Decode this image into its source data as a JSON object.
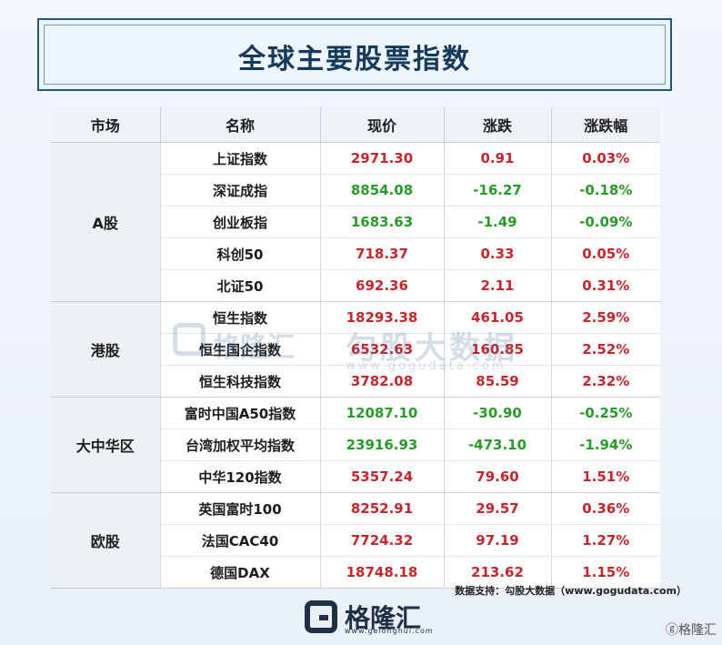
{
  "title": "全球主要股票指数",
  "headers": [
    "市场",
    "名称",
    "现价",
    "涨跌",
    "涨跌幅"
  ],
  "groups": [
    {
      "market": "A股",
      "rows": [
        {
          "name": "上证指数",
          "price": "2971.30",
          "change": "0.91",
          "pct": "0.03%",
          "dir": "up"
        },
        {
          "name": "深证成指",
          "price": "8854.08",
          "change": "-16.27",
          "pct": "-0.18%",
          "dir": "down"
        },
        {
          "name": "创业板指",
          "price": "1683.63",
          "change": "-1.49",
          "pct": "-0.09%",
          "dir": "down"
        },
        {
          "name": "科创50",
          "price": "718.37",
          "change": "0.33",
          "pct": "0.05%",
          "dir": "up"
        },
        {
          "name": "北证50",
          "price": "692.36",
          "change": "2.11",
          "pct": "0.31%",
          "dir": "up"
        }
      ]
    },
    {
      "market": "港股",
      "rows": [
        {
          "name": "恒生指数",
          "price": "18293.38",
          "change": "461.05",
          "pct": "2.59%",
          "dir": "up"
        },
        {
          "name": "恒生国企指数",
          "price": "6532.63",
          "change": "160.85",
          "pct": "2.52%",
          "dir": "up"
        },
        {
          "name": "恒生科技指数",
          "price": "3782.08",
          "change": "85.59",
          "pct": "2.32%",
          "dir": "up"
        }
      ]
    },
    {
      "market": "大中华区",
      "rows": [
        {
          "name": "富时中国A50指数",
          "price": "12087.10",
          "change": "-30.90",
          "pct": "-0.25%",
          "dir": "down"
        },
        {
          "name": "台湾加权平均指数",
          "price": "23916.93",
          "change": "-473.10",
          "pct": "-1.94%",
          "dir": "down"
        },
        {
          "name": "中华120指数",
          "price": "5357.24",
          "change": "79.60",
          "pct": "1.51%",
          "dir": "up"
        }
      ]
    },
    {
      "market": "欧股",
      "rows": [
        {
          "name": "英国富时100",
          "price": "8252.91",
          "change": "29.57",
          "pct": "0.36%",
          "dir": "up"
        },
        {
          "name": "法国CAC40",
          "price": "7724.32",
          "change": "97.19",
          "pct": "1.27%",
          "dir": "up"
        },
        {
          "name": "德国DAX",
          "price": "18748.18",
          "change": "213.62",
          "pct": "1.15%",
          "dir": "up"
        }
      ]
    }
  ],
  "source": "数据支持：勾股大数据（www.gogudata.com）",
  "watermark": {
    "brand": "格隆汇",
    "product": "勾股大数据",
    "url": "www.gogudata.com"
  },
  "logo": {
    "name": "格隆汇",
    "url": "www.gelonghui.com"
  },
  "corner_mark": "ⓖ格隆汇",
  "colors": {
    "up": "#c4262e",
    "down": "#2a9a2a",
    "title": "#163a5c"
  }
}
